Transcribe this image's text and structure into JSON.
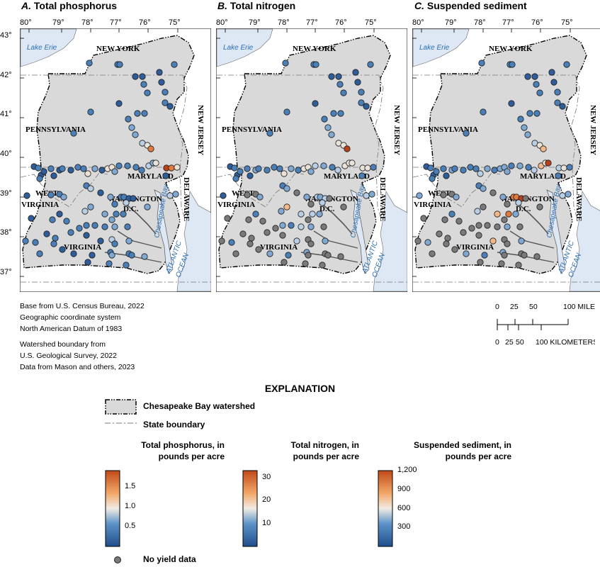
{
  "panels": [
    {
      "letter": "A.",
      "title": "Total phosphorus",
      "metric": "phosphorus"
    },
    {
      "letter": "B.",
      "title": "Total nitrogen",
      "metric": "nitrogen"
    },
    {
      "letter": "C.",
      "title": "Suspended sediment",
      "metric": "sediment"
    }
  ],
  "axis": {
    "longitude_labels": [
      "80°",
      "79°",
      "78°",
      "77°",
      "76°",
      "75°"
    ],
    "latitude_labels": [
      "43°",
      "42°",
      "41°",
      "40°",
      "39°",
      "38°",
      "37°"
    ]
  },
  "map_labels": {
    "lake_erie": "Lake Erie",
    "new_york": "NEW YORK",
    "pennsylvania": "PENNSYLVANIA",
    "new_jersey": "NEW JERSEY",
    "maryland": "MARYLAND",
    "west_virginia_1": "WEST",
    "west_virginia_2": "VIRGINIA",
    "washington_1": "WASHINGTON",
    "washington_2": "D.C.",
    "delaware": "DELAWARE",
    "virginia": "VIRGINIA",
    "chesapeake_bay": "Chesapeake Bay",
    "atlantic_1": "ATLANTIC",
    "atlantic_2": "OCEAN"
  },
  "credits": {
    "line1": "Base from U.S. Census Bureau, 2022",
    "line2": "Geographic coordinate system",
    "line3": "North American Datum of 1983",
    "line4": "Watershed boundary from",
    "line5": "U.S. Geological Survey, 2022",
    "line6": "Data from Mason and others, 2023"
  },
  "scale_bar": {
    "miles_ticks": [
      "0",
      "25",
      "50",
      "100 MILES"
    ],
    "km_ticks": [
      "0",
      "25",
      "50",
      "100 KILOMETERS"
    ]
  },
  "explanation": {
    "title": "EXPLANATION",
    "watershed_label": "Chesapeake Bay watershed",
    "state_boundary_label": "State boundary",
    "no_data_label": "No yield data",
    "colorbars": [
      {
        "title_1": "Total phosphorus, in",
        "title_2": "pounds per acre",
        "ticks": [
          "1.5",
          "1.0",
          "0.5"
        ],
        "tick_values": [
          1.5,
          1.0,
          0.5
        ],
        "range": [
          0,
          1.9
        ]
      },
      {
        "title_1": "Total nitrogen, in",
        "title_2": "pounds per acre",
        "ticks": [
          "30",
          "20",
          "10"
        ],
        "tick_values": [
          30,
          20,
          10
        ],
        "range": [
          0,
          33
        ]
      },
      {
        "title_1": "Suspended sediment, in",
        "title_2": "pounds per acre",
        "ticks": [
          "1,200",
          "900",
          "600",
          "300"
        ],
        "tick_values": [
          1200,
          900,
          600,
          300
        ],
        "range": [
          0,
          1200
        ]
      }
    ]
  },
  "colors": {
    "watershed_fill": "#d9d9d9",
    "water": "#dde8f4",
    "ramp_low": "#1f4e8c",
    "ramp_mid": "#f0ece4",
    "ramp_high": "#c14a1a",
    "no_data": "#7a7a7a",
    "label_blue": "#2a6db5"
  }
}
